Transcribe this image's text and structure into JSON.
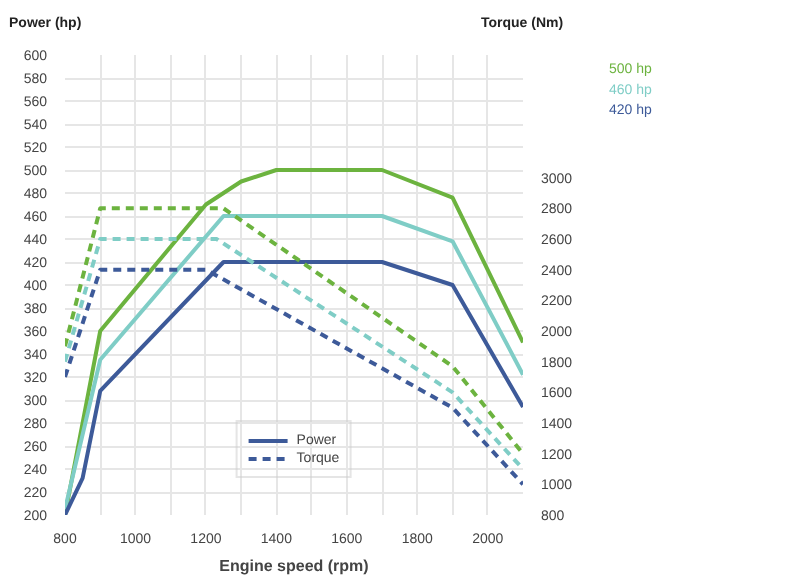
{
  "chart_data": {
    "type": "line",
    "xlabel": "Engine speed (rpm)",
    "ylabel": "Power (hp)",
    "y2label": "Torque (Nm)",
    "xlim": [
      800,
      2100
    ],
    "xticks": [
      800,
      {
        "value": 900,
        "label": null
      },
      1000,
      {
        "value": 1100,
        "label": null
      },
      1200,
      {
        "value": 1300,
        "label": null
      },
      1400,
      {
        "value": 1500,
        "label": null
      },
      1600,
      {
        "value": 1700,
        "label": null
      },
      1800,
      {
        "value": 1900,
        "label": null
      },
      2000
    ],
    "ylim": [
      200,
      600
    ],
    "yticks": [
      200,
      220,
      240,
      260,
      280,
      300,
      320,
      340,
      360,
      380,
      400,
      420,
      440,
      460,
      480,
      500,
      520,
      540,
      560,
      580,
      600
    ],
    "y2lim": [
      800,
      3800
    ],
    "y2ticks": [
      800,
      1000,
      1200,
      1400,
      1600,
      1800,
      2000,
      2200,
      2400,
      2600,
      2800,
      3000
    ],
    "grid": true,
    "legend": "top right",
    "annotations": [
      "Power",
      "Torque"
    ],
    "series": [
      {
        "name": "500 hp",
        "color": "#6cb33f",
        "line_style": "solid",
        "x": [
          800,
          900,
          1200,
          1300,
          1400,
          1700,
          1900,
          2100
        ],
        "values": [
          200,
          360,
          470,
          490,
          500,
          500,
          476,
          350
        ]
      },
      {
        "name": "460 hp",
        "color": "#7fcdc6",
        "line_style": "solid",
        "x": [
          800,
          900,
          1250,
          1700,
          1900,
          2100
        ],
        "values": [
          205,
          335,
          460,
          460,
          438,
          322
        ]
      },
      {
        "name": "420 hp",
        "color": "#3d5a99",
        "line_style": "solid",
        "x": [
          800,
          850,
          900,
          1250,
          1700,
          1900,
          2100
        ],
        "values": [
          200,
          232,
          308,
          420,
          420,
          400,
          294
        ]
      },
      {
        "color": "#6cb33f",
        "line_style": "dashed",
        "axis": "y2",
        "x": [
          800,
          900,
          1250,
          1900,
          2100
        ],
        "values": [
          1900,
          2800,
          2800,
          1770,
          1200
        ]
      },
      {
        "color": "#7fcdc6",
        "line_style": "dashed",
        "axis": "y2",
        "x": [
          800,
          900,
          1230,
          1900,
          2100
        ],
        "values": [
          1800,
          2600,
          2600,
          1600,
          1100
        ]
      },
      {
        "color": "#3d5a99",
        "line_style": "dashed",
        "axis": "y2",
        "x": [
          800,
          900,
          1200,
          1900,
          2100
        ],
        "values": [
          1700,
          2400,
          2400,
          1500,
          1000
        ]
      }
    ]
  }
}
